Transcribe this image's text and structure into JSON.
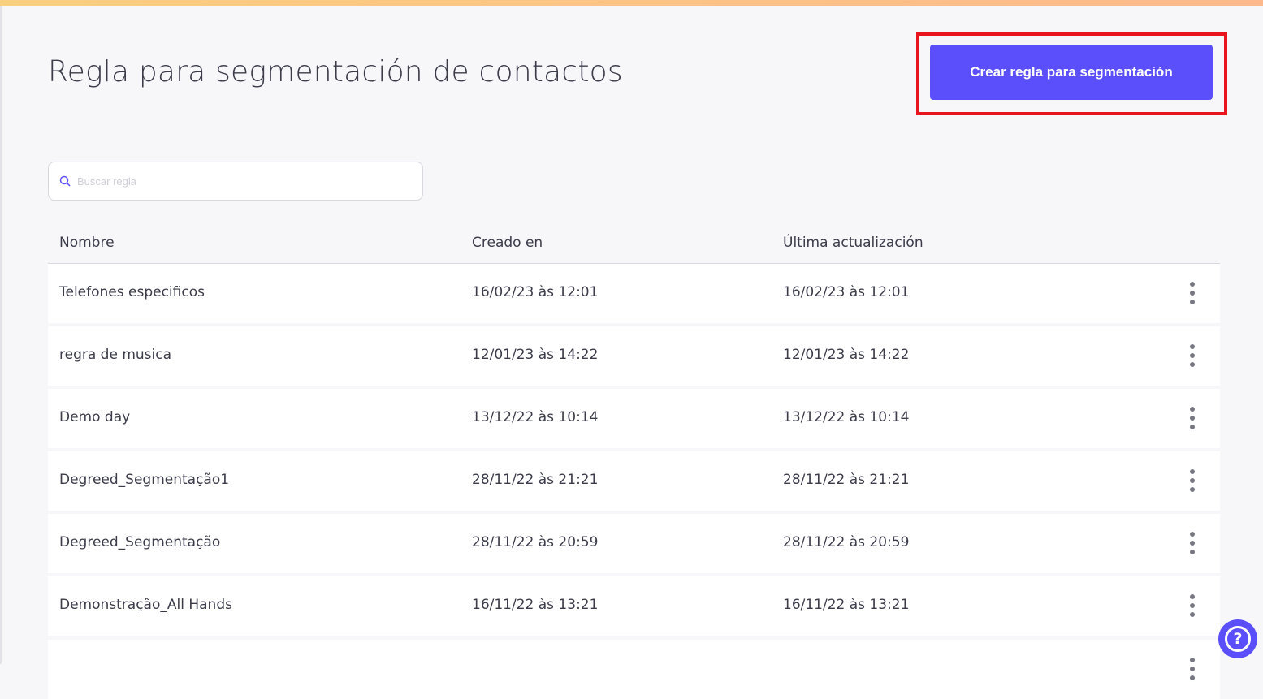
{
  "header": {
    "title": "Regla para segmentación de contactos",
    "create_button": "Crear regla para segmentación"
  },
  "search": {
    "placeholder": "Buscar regla",
    "value": ""
  },
  "table": {
    "columns": [
      "Nombre",
      "Creado en",
      "Última actualización"
    ],
    "rows": [
      {
        "name": "Telefones especificos",
        "created": "16/02/23 às 12:01",
        "updated": "16/02/23 às 12:01"
      },
      {
        "name": "regra de musica",
        "created": "12/01/23 às 14:22",
        "updated": "12/01/23 às 14:22"
      },
      {
        "name": "Demo day",
        "created": "13/12/22 às 10:14",
        "updated": "13/12/22 às 10:14"
      },
      {
        "name": "Degreed_Segmentação1",
        "created": "28/11/22 às 21:21",
        "updated": "28/11/22 às 21:21"
      },
      {
        "name": "Degreed_Segmentação",
        "created": "28/11/22 às 20:59",
        "updated": "28/11/22 às 20:59"
      },
      {
        "name": "Demonstração_All Hands",
        "created": "16/11/22 às 13:21",
        "updated": "16/11/22 às 13:21"
      }
    ]
  },
  "colors": {
    "accent": "#5b4ffc",
    "highlight": "#e8141e"
  },
  "icons": {
    "search": "search-icon",
    "row_menu": "kebab-menu-icon",
    "help": "help-icon"
  }
}
